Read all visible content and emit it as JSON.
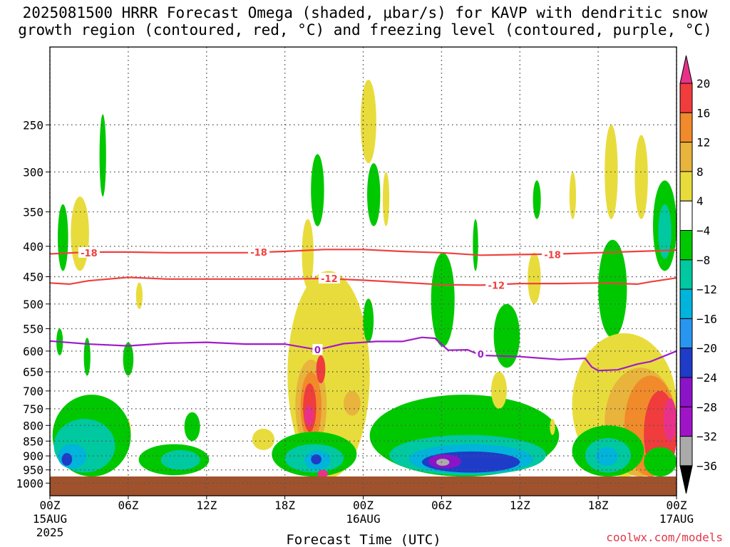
{
  "title": {
    "line1": "2025081500 HRRR Forecast Omega (shaded, μbar/s) for KAVP with dendritic snow",
    "line2": "growth region (contoured, red, °C) and freezing level (contoured, purple, °C)"
  },
  "xlabel": "Forecast Time (UTC)",
  "credit": "coolwx.com/models",
  "chart_data": {
    "type": "heatmap",
    "title": "2025081500 HRRR Forecast Omega (shaded, μbar/s) for KAVP with dendritic snow growth region (contoured, red, °C) and freezing level (contoured, purple, °C)",
    "xlabel": "Forecast Time (UTC)",
    "ylabel": "",
    "x_range_hours": [
      0,
      48
    ],
    "y_scale": "log",
    "y_range_mb": [
      1050,
      185
    ],
    "y_reversed": true,
    "grid": true,
    "x_ticks": [
      {
        "hour": 0,
        "label": "00Z",
        "sub": "15AUG",
        "sub2": "2025"
      },
      {
        "hour": 6,
        "label": "06Z"
      },
      {
        "hour": 12,
        "label": "12Z"
      },
      {
        "hour": 18,
        "label": "18Z"
      },
      {
        "hour": 24,
        "label": "00Z",
        "sub": "16AUG"
      },
      {
        "hour": 30,
        "label": "06Z"
      },
      {
        "hour": 36,
        "label": "12Z"
      },
      {
        "hour": 42,
        "label": "18Z"
      },
      {
        "hour": 48,
        "label": "00Z",
        "sub": "17AUG"
      }
    ],
    "y_ticks": [
      250,
      300,
      350,
      400,
      450,
      500,
      550,
      600,
      650,
      700,
      750,
      800,
      850,
      900,
      950,
      1000
    ],
    "colorbar": {
      "levels": [
        "20",
        "16",
        "12",
        "8",
        "4",
        "−4",
        "−8",
        "−12",
        "−16",
        "−20",
        "−24",
        "−28",
        "−32",
        "−36"
      ],
      "colors": [
        "#e8328a",
        "#f03c3c",
        "#f08a2a",
        "#e8b43c",
        "#e8dc3c",
        "#ffffff",
        "#00c800",
        "#00c8a0",
        "#00b4dc",
        "#2896f0",
        "#1e3cc8",
        "#8c14c8",
        "#a014c8",
        "#aaaaaa",
        "#000000"
      ]
    },
    "terrain_color": "#a0522d",
    "contours": [
      {
        "name": "-18",
        "color": "#f04040",
        "points": [
          [
            0,
            412
          ],
          [
            3,
            409
          ],
          [
            6,
            409
          ],
          [
            9,
            410
          ],
          [
            12,
            410
          ],
          [
            15,
            410
          ],
          [
            18,
            408
          ],
          [
            21,
            405
          ],
          [
            24,
            405
          ],
          [
            27,
            408
          ],
          [
            30,
            410
          ],
          [
            33,
            414
          ],
          [
            36,
            413
          ],
          [
            39,
            412
          ],
          [
            42,
            410
          ],
          [
            45,
            408
          ],
          [
            48,
            406
          ]
        ],
        "labels": [
          [
            3,
            410
          ],
          [
            16,
            409
          ],
          [
            38.5,
            413
          ]
        ]
      },
      {
        "name": "-12",
        "color": "#f04040",
        "points": [
          [
            0,
            461
          ],
          [
            1.5,
            463
          ],
          [
            3,
            457
          ],
          [
            6,
            451
          ],
          [
            9,
            454
          ],
          [
            12,
            454
          ],
          [
            15,
            454
          ],
          [
            18,
            454
          ],
          [
            21,
            453
          ],
          [
            24,
            456
          ],
          [
            27,
            460
          ],
          [
            30,
            464
          ],
          [
            33,
            465
          ],
          [
            36,
            462
          ],
          [
            39,
            462
          ],
          [
            42,
            461
          ],
          [
            45,
            463
          ],
          [
            46,
            459
          ],
          [
            48,
            452
          ]
        ],
        "labels": [
          [
            21.4,
            453
          ],
          [
            34.2,
            465
          ]
        ]
      },
      {
        "name": "0",
        "color": "#a01cc8",
        "points": [
          [
            0,
            577
          ],
          [
            3,
            584
          ],
          [
            6,
            588
          ],
          [
            9,
            582
          ],
          [
            12,
            580
          ],
          [
            15,
            584
          ],
          [
            18,
            584
          ],
          [
            20.5,
            597
          ],
          [
            22.5,
            583
          ],
          [
            25,
            578
          ],
          [
            27,
            578
          ],
          [
            28.5,
            569
          ],
          [
            29.5,
            571
          ],
          [
            30.5,
            598
          ],
          [
            32,
            597
          ],
          [
            33,
            610
          ],
          [
            36,
            613
          ],
          [
            39,
            620
          ],
          [
            41,
            617
          ],
          [
            41.5,
            638
          ],
          [
            42,
            647
          ],
          [
            43.5,
            645
          ],
          [
            45,
            631
          ],
          [
            46,
            625
          ],
          [
            48,
            600
          ]
        ],
        "labels": [
          [
            20.5,
            597
          ],
          [
            33,
            607
          ]
        ]
      }
    ],
    "omega_regions": [
      {
        "level": "-4",
        "color": "#00c800",
        "h": [
          0.6,
          1.4
        ],
        "p": [
          340,
          440
        ]
      },
      {
        "level": "4",
        "color": "#e8dc3c",
        "h": [
          1.6,
          3.0
        ],
        "p": [
          330,
          440
        ]
      },
      {
        "level": "-4",
        "color": "#00c800",
        "h": [
          3.8,
          4.3
        ],
        "p": [
          240,
          330
        ]
      },
      {
        "level": "-4",
        "color": "#00c800",
        "h": [
          0.5,
          1.0
        ],
        "p": [
          550,
          610
        ]
      },
      {
        "level": "-4",
        "color": "#00c800",
        "h": [
          2.6,
          3.1
        ],
        "p": [
          570,
          660
        ]
      },
      {
        "level": "4",
        "color": "#e8dc3c",
        "h": [
          6.6,
          7.1
        ],
        "p": [
          460,
          510
        ]
      },
      {
        "level": "-4",
        "color": "#00c800",
        "h": [
          5.6,
          6.4
        ],
        "p": [
          580,
          660
        ]
      },
      {
        "level": "4",
        "color": "#e8dc3c",
        "h": [
          5.6,
          6.2
        ],
        "p": [
          780,
          850
        ]
      },
      {
        "level": "-4",
        "color": "#00c800",
        "h": [
          0.2,
          6.2
        ],
        "p": [
          710,
          975
        ]
      },
      {
        "level": "-8",
        "color": "#00c8a0",
        "h": [
          0.3,
          5.0
        ],
        "p": [
          780,
          960
        ]
      },
      {
        "level": "-12",
        "color": "#00b4dc",
        "h": [
          0.6,
          2.8
        ],
        "p": [
          860,
          945
        ]
      },
      {
        "level": "-20",
        "color": "#1e3cc8",
        "h": [
          0.9,
          1.7
        ],
        "p": [
          890,
          935
        ]
      },
      {
        "level": "-4",
        "color": "#00c800",
        "h": [
          6.8,
          12.2
        ],
        "p": [
          860,
          970
        ]
      },
      {
        "level": "-8",
        "color": "#00c8a0",
        "h": [
          8.5,
          11.5
        ],
        "p": [
          880,
          950
        ]
      },
      {
        "level": "-4",
        "color": "#00c800",
        "h": [
          10.3,
          11.5
        ],
        "p": [
          760,
          850
        ]
      },
      {
        "level": "4",
        "color": "#e8dc3c",
        "h": [
          15.5,
          17.2
        ],
        "p": [
          810,
          880
        ]
      },
      {
        "level": "-4",
        "color": "#00c800",
        "h": [
          20.0,
          21.0
        ],
        "p": [
          280,
          370
        ]
      },
      {
        "level": "4",
        "color": "#e8dc3c",
        "h": [
          19.3,
          20.2
        ],
        "p": [
          360,
          470
        ]
      },
      {
        "level": "4",
        "color": "#e8dc3c",
        "h": [
          18.2,
          24.5
        ],
        "p": [
          440,
          980
        ]
      },
      {
        "level": "8",
        "color": "#e8b43c",
        "h": [
          18.8,
          21.2
        ],
        "p": [
          620,
          880
        ]
      },
      {
        "level": "12",
        "color": "#f08a2a",
        "h": [
          19.2,
          20.8
        ],
        "p": [
          650,
          850
        ]
      },
      {
        "level": "16",
        "color": "#f03c3c",
        "h": [
          19.4,
          20.4
        ],
        "p": [
          680,
          820
        ]
      },
      {
        "level": "20",
        "color": "#e8328a",
        "h": [
          19.5,
          20.2
        ],
        "p": [
          740,
          800
        ]
      },
      {
        "level": "16",
        "color": "#f03c3c",
        "h": [
          20.4,
          21.1
        ],
        "p": [
          610,
          680
        ]
      },
      {
        "level": "8",
        "color": "#e8b43c",
        "h": [
          22.5,
          23.8
        ],
        "p": [
          700,
          770
        ]
      },
      {
        "level": "-4",
        "color": "#00c800",
        "h": [
          17.0,
          23.5
        ],
        "p": [
          820,
          975
        ]
      },
      {
        "level": "-8",
        "color": "#00c8a0",
        "h": [
          18.0,
          22.5
        ],
        "p": [
          860,
          960
        ]
      },
      {
        "level": "-12",
        "color": "#00b4dc",
        "h": [
          19.5,
          21.5
        ],
        "p": [
          880,
          950
        ]
      },
      {
        "level": "-20",
        "color": "#1e3cc8",
        "h": [
          20.0,
          20.8
        ],
        "p": [
          895,
          930
        ]
      },
      {
        "level": "20",
        "color": "#e8328a",
        "h": [
          20.5,
          21.3
        ],
        "p": [
          950,
          980
        ]
      },
      {
        "level": "4",
        "color": "#e8dc3c",
        "h": [
          23.8,
          25.0
        ],
        "p": [
          210,
          290
        ]
      },
      {
        "level": "-4",
        "color": "#00c800",
        "h": [
          24.3,
          25.3
        ],
        "p": [
          290,
          370
        ]
      },
      {
        "level": "4",
        "color": "#e8dc3c",
        "h": [
          25.5,
          26.0
        ],
        "p": [
          300,
          370
        ]
      },
      {
        "level": "-4",
        "color": "#00c800",
        "h": [
          24.0,
          24.8
        ],
        "p": [
          490,
          580
        ]
      },
      {
        "level": "-4",
        "color": "#00c800",
        "h": [
          29.2,
          31.0
        ],
        "p": [
          410,
          590
        ]
      },
      {
        "level": "-4",
        "color": "#00c800",
        "h": [
          24.5,
          39.0
        ],
        "p": [
          710,
          975
        ]
      },
      {
        "level": "-8",
        "color": "#00c8a0",
        "h": [
          26.0,
          38.0
        ],
        "p": [
          830,
          970
        ]
      },
      {
        "level": "-12",
        "color": "#00b4dc",
        "h": [
          27.5,
          37.0
        ],
        "p": [
          860,
          965
        ]
      },
      {
        "level": "-20",
        "color": "#1e3cc8",
        "h": [
          28.5,
          36.0
        ],
        "p": [
          885,
          960
        ]
      },
      {
        "level": "-28",
        "color": "#8c14c8",
        "h": [
          29.0,
          31.5
        ],
        "p": [
          895,
          945
        ]
      },
      {
        "level": "-32",
        "color": "#aaaaaa",
        "h": [
          29.6,
          30.6
        ],
        "p": [
          910,
          935
        ]
      },
      {
        "level": "-4",
        "color": "#00c800",
        "h": [
          32.4,
          32.8
        ],
        "p": [
          360,
          440
        ]
      },
      {
        "level": "-4",
        "color": "#00c800",
        "h": [
          34.0,
          36.0
        ],
        "p": [
          500,
          640
        ]
      },
      {
        "level": "4",
        "color": "#e8dc3c",
        "h": [
          33.8,
          35.0
        ],
        "p": [
          650,
          750
        ]
      },
      {
        "level": "-4",
        "color": "#00c800",
        "h": [
          37.0,
          37.6
        ],
        "p": [
          310,
          360
        ]
      },
      {
        "level": "4",
        "color": "#e8dc3c",
        "h": [
          36.6,
          37.6
        ],
        "p": [
          410,
          500
        ]
      },
      {
        "level": "4",
        "color": "#e8dc3c",
        "h": [
          38.3,
          38.7
        ],
        "p": [
          780,
          830
        ]
      },
      {
        "level": "4",
        "color": "#e8dc3c",
        "h": [
          39.8,
          40.3
        ],
        "p": [
          300,
          360
        ]
      },
      {
        "level": "4",
        "color": "#e8dc3c",
        "h": [
          42.5,
          43.5
        ],
        "p": [
          250,
          360
        ]
      },
      {
        "level": "4",
        "color": "#e8dc3c",
        "h": [
          44.8,
          45.8
        ],
        "p": [
          260,
          360
        ]
      },
      {
        "level": "-4",
        "color": "#00c800",
        "h": [
          46.2,
          48.0
        ],
        "p": [
          310,
          440
        ]
      },
      {
        "level": "-8",
        "color": "#00c8a0",
        "h": [
          46.6,
          47.6
        ],
        "p": [
          340,
          420
        ]
      },
      {
        "level": "-4",
        "color": "#00c800",
        "h": [
          42.0,
          44.2
        ],
        "p": [
          390,
          570
        ]
      },
      {
        "level": "4",
        "color": "#e8dc3c",
        "h": [
          40.0,
          48.0
        ],
        "p": [
          560,
          975
        ]
      },
      {
        "level": "8",
        "color": "#e8b43c",
        "h": [
          42.5,
          48.0
        ],
        "p": [
          640,
          975
        ]
      },
      {
        "level": "12",
        "color": "#f08a2a",
        "h": [
          44.0,
          48.0
        ],
        "p": [
          660,
          975
        ]
      },
      {
        "level": "16",
        "color": "#f03c3c",
        "h": [
          45.5,
          48.0
        ],
        "p": [
          700,
          975
        ]
      },
      {
        "level": "20",
        "color": "#e8328a",
        "h": [
          47.0,
          48.0
        ],
        "p": [
          720,
          850
        ]
      },
      {
        "level": "-4",
        "color": "#00c800",
        "h": [
          40.0,
          45.5
        ],
        "p": [
          800,
          975
        ]
      },
      {
        "level": "-8",
        "color": "#00c8a0",
        "h": [
          41.0,
          44.5
        ],
        "p": [
          840,
          960
        ]
      },
      {
        "level": "-12",
        "color": "#00b4dc",
        "h": [
          41.8,
          43.5
        ],
        "p": [
          870,
          935
        ]
      },
      {
        "level": "-4",
        "color": "#00c800",
        "h": [
          45.5,
          48.0
        ],
        "p": [
          870,
          975
        ]
      }
    ]
  }
}
